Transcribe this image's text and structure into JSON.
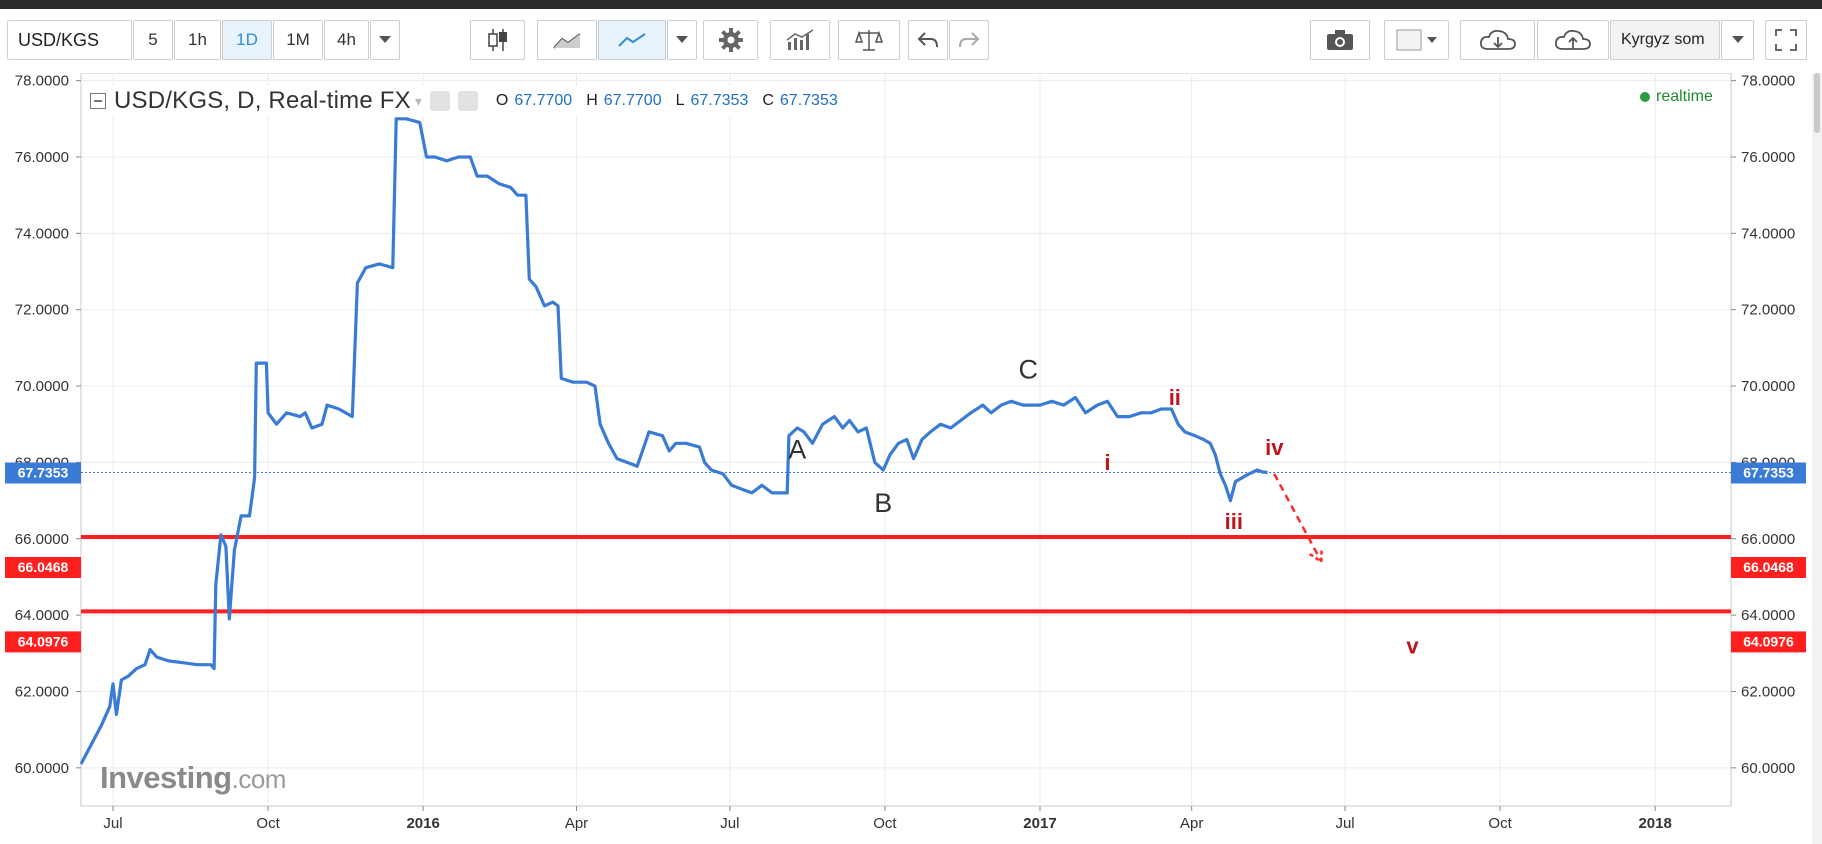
{
  "toolbar": {
    "symbol": "USD/KGS",
    "intervals": [
      "5",
      "1h",
      "1D",
      "1M",
      "4h"
    ],
    "active_interval": "1D",
    "currency_label": "Kyrgyz som"
  },
  "header": {
    "title": "USD/KGS, D, Real-time FX",
    "o_label": "O",
    "o_value": "67.7700",
    "h_label": "H",
    "h_value": "67.7700",
    "l_label": "L",
    "l_value": "67.7353",
    "c_label": "C",
    "c_value": "67.7353",
    "realtime": "realtime"
  },
  "watermark": {
    "brand": "Investing",
    "suffix": ".com"
  },
  "colors": {
    "line": "#3a7bd5",
    "level": "#ff1f1f",
    "wave": "#c0141b",
    "last_price": "#3a7bd5"
  },
  "chart_data": {
    "type": "line",
    "ylim": [
      59.0,
      78.2
    ],
    "y_ticks": [
      "78.0000",
      "76.0000",
      "74.0000",
      "72.0000",
      "70.0000",
      "68.0000",
      "66.0000",
      "64.0000",
      "62.0000",
      "60.0000"
    ],
    "x_ticks": [
      {
        "label": "Jul",
        "date": "2015-07-01",
        "bold": false
      },
      {
        "label": "Oct",
        "date": "2015-10-01",
        "bold": false
      },
      {
        "label": "2016",
        "date": "2016-01-01",
        "bold": true
      },
      {
        "label": "Apr",
        "date": "2016-04-01",
        "bold": false
      },
      {
        "label": "Jul",
        "date": "2016-07-01",
        "bold": false
      },
      {
        "label": "Oct",
        "date": "2016-10-01",
        "bold": false
      },
      {
        "label": "2017",
        "date": "2017-01-01",
        "bold": true
      },
      {
        "label": "Apr",
        "date": "2017-04-01",
        "bold": false
      },
      {
        "label": "Jul",
        "date": "2017-07-01",
        "bold": false
      },
      {
        "label": "Oct",
        "date": "2017-10-01",
        "bold": false
      },
      {
        "label": "2018",
        "date": "2018-01-01",
        "bold": true
      }
    ],
    "x_range": [
      "2015-06-12",
      "2018-02-15"
    ],
    "series": [
      {
        "values": [
          [
            "2015-06-12",
            60.1
          ],
          [
            "2015-06-18",
            60.6
          ],
          [
            "2015-06-24",
            61.1
          ],
          [
            "2015-06-29",
            61.6
          ],
          [
            "2015-07-01",
            62.2
          ],
          [
            "2015-07-03",
            61.4
          ],
          [
            "2015-07-06",
            62.3
          ],
          [
            "2015-07-10",
            62.4
          ],
          [
            "2015-07-15",
            62.6
          ],
          [
            "2015-07-20",
            62.7
          ],
          [
            "2015-07-23",
            63.1
          ],
          [
            "2015-07-27",
            62.9
          ],
          [
            "2015-08-03",
            62.8
          ],
          [
            "2015-08-12",
            62.75
          ],
          [
            "2015-08-20",
            62.7
          ],
          [
            "2015-08-28",
            62.7
          ],
          [
            "2015-08-30",
            62.6
          ],
          [
            "2015-08-31",
            64.8
          ],
          [
            "2015-09-03",
            66.1
          ],
          [
            "2015-09-06",
            65.8
          ],
          [
            "2015-09-08",
            63.9
          ],
          [
            "2015-09-11",
            65.7
          ],
          [
            "2015-09-15",
            66.6
          ],
          [
            "2015-09-20",
            66.6
          ],
          [
            "2015-09-23",
            67.6
          ],
          [
            "2015-09-24",
            70.6
          ],
          [
            "2015-09-30",
            70.6
          ],
          [
            "2015-10-01",
            69.3
          ],
          [
            "2015-10-06",
            69.0
          ],
          [
            "2015-10-12",
            69.3
          ],
          [
            "2015-10-20",
            69.2
          ],
          [
            "2015-10-23",
            69.3
          ],
          [
            "2015-10-27",
            68.9
          ],
          [
            "2015-11-02",
            69.0
          ],
          [
            "2015-11-05",
            69.5
          ],
          [
            "2015-11-12",
            69.4
          ],
          [
            "2015-11-20",
            69.2
          ],
          [
            "2015-11-23",
            72.7
          ],
          [
            "2015-11-28",
            73.1
          ],
          [
            "2015-12-06",
            73.2
          ],
          [
            "2015-12-14",
            73.1
          ],
          [
            "2015-12-16",
            77.0
          ],
          [
            "2015-12-22",
            77.0
          ],
          [
            "2015-12-30",
            76.9
          ],
          [
            "2016-01-03",
            76.0
          ],
          [
            "2016-01-08",
            76.0
          ],
          [
            "2016-01-15",
            75.9
          ],
          [
            "2016-01-22",
            76.0
          ],
          [
            "2016-01-29",
            76.0
          ],
          [
            "2016-02-02",
            75.5
          ],
          [
            "2016-02-08",
            75.5
          ],
          [
            "2016-02-15",
            75.3
          ],
          [
            "2016-02-22",
            75.2
          ],
          [
            "2016-02-26",
            75.0
          ],
          [
            "2016-03-02",
            75.0
          ],
          [
            "2016-03-04",
            72.8
          ],
          [
            "2016-03-08",
            72.6
          ],
          [
            "2016-03-13",
            72.1
          ],
          [
            "2016-03-18",
            72.2
          ],
          [
            "2016-03-21",
            72.1
          ],
          [
            "2016-03-23",
            70.2
          ],
          [
            "2016-03-30",
            70.1
          ],
          [
            "2016-04-07",
            70.1
          ],
          [
            "2016-04-12",
            70.0
          ],
          [
            "2016-04-15",
            69.0
          ],
          [
            "2016-04-20",
            68.5
          ],
          [
            "2016-04-25",
            68.1
          ],
          [
            "2016-05-01",
            68.0
          ],
          [
            "2016-05-07",
            67.9
          ],
          [
            "2016-05-14",
            68.8
          ],
          [
            "2016-05-22",
            68.7
          ],
          [
            "2016-05-26",
            68.3
          ],
          [
            "2016-05-30",
            68.5
          ],
          [
            "2016-06-05",
            68.5
          ],
          [
            "2016-06-13",
            68.4
          ],
          [
            "2016-06-16",
            68.0
          ],
          [
            "2016-06-20",
            67.8
          ],
          [
            "2016-06-27",
            67.7
          ],
          [
            "2016-07-02",
            67.4
          ],
          [
            "2016-07-08",
            67.3
          ],
          [
            "2016-07-14",
            67.2
          ],
          [
            "2016-07-20",
            67.4
          ],
          [
            "2016-07-26",
            67.2
          ],
          [
            "2016-08-01",
            67.2
          ],
          [
            "2016-08-04",
            67.2
          ],
          [
            "2016-08-05",
            68.7
          ],
          [
            "2016-08-10",
            68.9
          ],
          [
            "2016-08-14",
            68.8
          ],
          [
            "2016-08-19",
            68.5
          ],
          [
            "2016-08-25",
            69.0
          ],
          [
            "2016-09-01",
            69.2
          ],
          [
            "2016-09-06",
            68.9
          ],
          [
            "2016-09-10",
            69.1
          ],
          [
            "2016-09-15",
            68.8
          ],
          [
            "2016-09-20",
            68.9
          ],
          [
            "2016-09-25",
            68.0
          ],
          [
            "2016-09-30",
            67.8
          ],
          [
            "2016-10-04",
            68.2
          ],
          [
            "2016-10-09",
            68.5
          ],
          [
            "2016-10-14",
            68.6
          ],
          [
            "2016-10-18",
            68.1
          ],
          [
            "2016-10-23",
            68.6
          ],
          [
            "2016-10-28",
            68.8
          ],
          [
            "2016-11-03",
            69.0
          ],
          [
            "2016-11-09",
            68.9
          ],
          [
            "2016-11-15",
            69.1
          ],
          [
            "2016-11-21",
            69.3
          ],
          [
            "2016-11-28",
            69.5
          ],
          [
            "2016-12-03",
            69.3
          ],
          [
            "2016-12-09",
            69.5
          ],
          [
            "2016-12-15",
            69.6
          ],
          [
            "2016-12-22",
            69.5
          ],
          [
            "2017-01-01",
            69.5
          ],
          [
            "2017-01-08",
            69.6
          ],
          [
            "2017-01-15",
            69.5
          ],
          [
            "2017-01-22",
            69.7
          ],
          [
            "2017-01-28",
            69.3
          ],
          [
            "2017-02-04",
            69.5
          ],
          [
            "2017-02-10",
            69.6
          ],
          [
            "2017-02-16",
            69.2
          ],
          [
            "2017-02-23",
            69.2
          ],
          [
            "2017-03-02",
            69.3
          ],
          [
            "2017-03-08",
            69.3
          ],
          [
            "2017-03-14",
            69.4
          ],
          [
            "2017-03-20",
            69.4
          ],
          [
            "2017-03-24",
            69.0
          ],
          [
            "2017-03-28",
            68.8
          ],
          [
            "2017-04-03",
            68.7
          ],
          [
            "2017-04-08",
            68.6
          ],
          [
            "2017-04-12",
            68.5
          ],
          [
            "2017-04-15",
            68.2
          ],
          [
            "2017-04-18",
            67.7
          ],
          [
            "2017-04-21",
            67.4
          ],
          [
            "2017-04-24",
            67.0
          ],
          [
            "2017-04-27",
            67.5
          ],
          [
            "2017-05-01",
            67.6
          ],
          [
            "2017-05-05",
            67.7
          ],
          [
            "2017-05-10",
            67.8
          ],
          [
            "2017-05-13",
            67.75
          ],
          [
            "2017-05-16",
            67.7353
          ]
        ]
      }
    ],
    "last_price": "67.7353",
    "levels": [
      {
        "value": 66.0468,
        "label": "66.0468"
      },
      {
        "value": 64.0976,
        "label": "64.0976"
      }
    ],
    "annotations": [
      {
        "text": "A",
        "date": "2016-08-10",
        "y": 68.1,
        "color": "#333333"
      },
      {
        "text": "B",
        "date": "2016-09-30",
        "y": 66.7,
        "color": "#333333"
      },
      {
        "text": "C",
        "date": "2016-12-25",
        "y": 70.2,
        "color": "#333333"
      },
      {
        "text": "i",
        "date": "2017-02-10",
        "y": 67.8,
        "color": "#c0141b"
      },
      {
        "text": "ii",
        "date": "2017-03-22",
        "y": 69.5,
        "color": "#c0141b"
      },
      {
        "text": "iii",
        "date": "2017-04-26",
        "y": 66.25,
        "color": "#c0141b"
      },
      {
        "text": "iv",
        "date": "2017-05-20",
        "y": 68.2,
        "color": "#c0141b"
      },
      {
        "text": "v",
        "date": "2017-08-10",
        "y": 63.0,
        "color": "#c0141b"
      }
    ],
    "projection": [
      [
        "2017-05-20",
        67.7
      ],
      [
        "2017-06-17",
        65.4
      ]
    ],
    "grid": true
  }
}
